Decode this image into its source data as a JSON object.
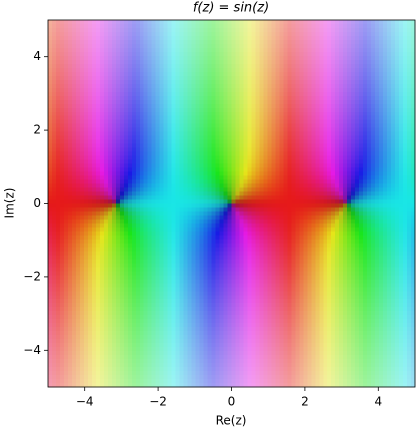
{
  "chart_data": {
    "type": "domain-coloring",
    "title": "f(z) = sin(z)",
    "x_label": "Re(z)",
    "y_label": "Im(z)",
    "xlim": [
      -5,
      5
    ],
    "ylim": [
      -5,
      5
    ],
    "xticks": [
      {
        "value": -4,
        "label": "−4"
      },
      {
        "value": -2,
        "label": "−2"
      },
      0,
      2,
      4
    ],
    "yticks": [
      {
        "value": -4,
        "label": "−4"
      },
      {
        "value": -2,
        "label": "−2"
      },
      0,
      2,
      4
    ]
  }
}
